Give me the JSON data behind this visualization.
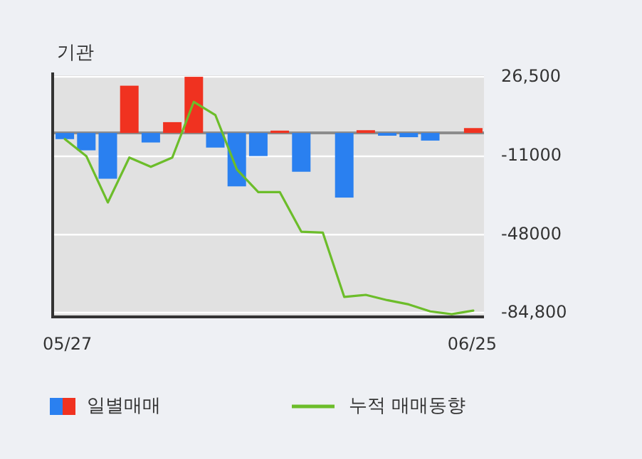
{
  "chart_data": {
    "type": "bar",
    "title": "기관",
    "categories": [
      "05/27",
      null,
      null,
      null,
      null,
      null,
      null,
      null,
      null,
      null,
      null,
      null,
      null,
      null,
      null,
      null,
      null,
      null,
      null,
      "06/25"
    ],
    "series": [
      {
        "name": "일별매매",
        "colors": [
          "#2a80f0",
          "#2a80f0",
          "#2a80f0",
          "#f03220",
          "#2a80f0",
          "#f03220",
          "#f03220",
          "#2a80f0",
          "#2a80f0",
          "#2a80f0",
          "#f03220",
          "#2a80f0",
          "#2a80f0",
          "#2a80f0",
          "#f03220",
          "#2a80f0",
          "#2a80f0",
          "#2a80f0",
          "#2a80f0",
          "#f03220"
        ],
        "values": [
          -2900,
          -8200,
          -21600,
          22300,
          -4500,
          5100,
          26500,
          -6900,
          -25200,
          -10900,
          1100,
          -18300,
          0,
          -30500,
          1300,
          -1300,
          -2000,
          -3600,
          0,
          2300
        ]
      },
      {
        "name": "누적 매매동향",
        "type": "line",
        "color": "#6cbd2a",
        "values": [
          -2900,
          -10900,
          -32800,
          -11600,
          -16000,
          -11600,
          14700,
          8500,
          -17200,
          -27900,
          -27900,
          -46600,
          -47000,
          -77400,
          -76400,
          -78900,
          -80900,
          -84200,
          -85500,
          -83800
        ]
      }
    ],
    "ylim": [
      -86800,
      27200
    ],
    "yticks": [
      {
        "value": 26500,
        "label": "26,500"
      },
      {
        "value": -11000,
        "label": "-11000"
      },
      {
        "value": -48000,
        "label": "-48000"
      },
      {
        "value": -84800,
        "label": "-84,800"
      }
    ],
    "grid": "y",
    "legend": "bottom",
    "marker": "none"
  }
}
